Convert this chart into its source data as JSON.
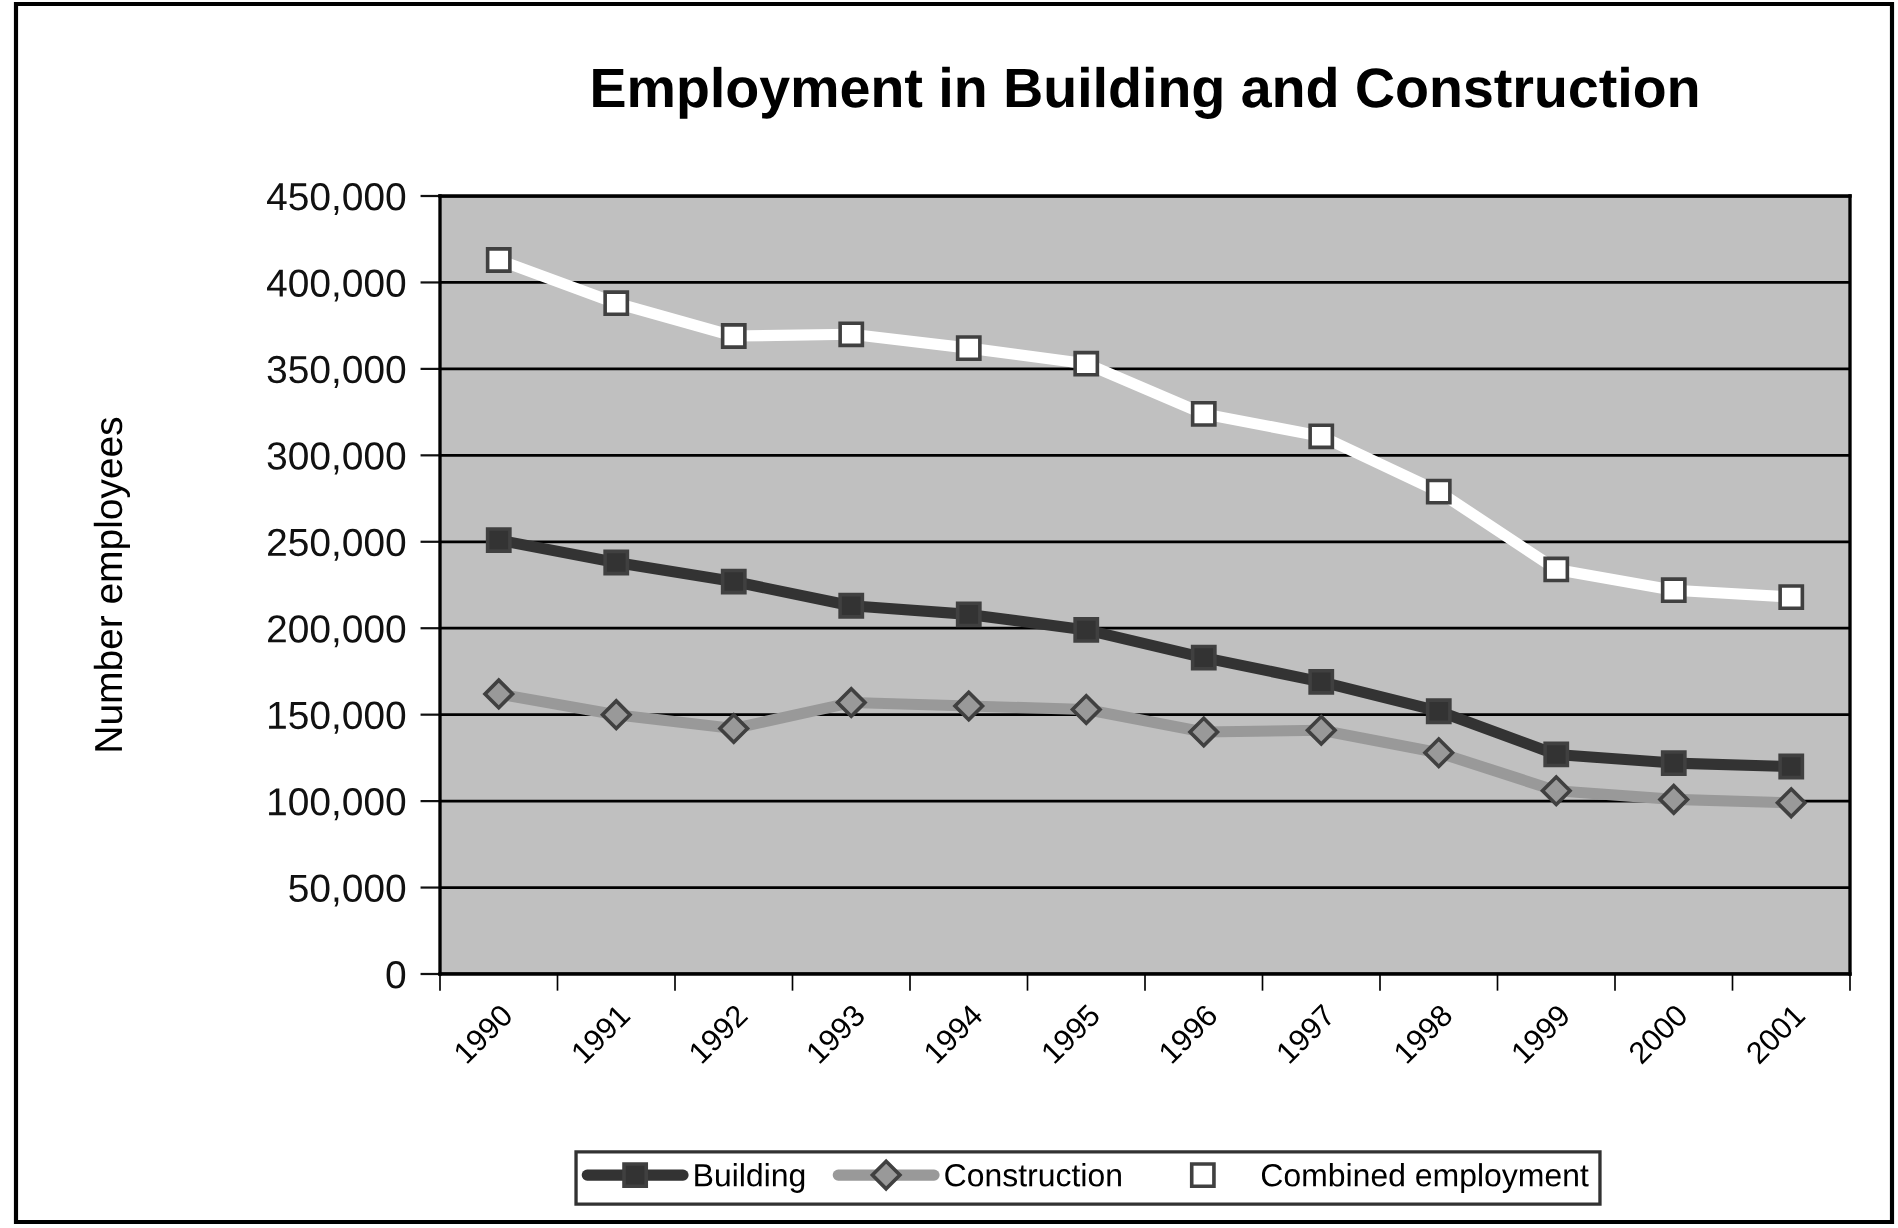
{
  "chart_data": {
    "type": "line",
    "title": "Employment in Building and Construction",
    "ylabel": "Number employees",
    "categories": [
      "1990",
      "1991",
      "1992",
      "1993",
      "1994",
      "1995",
      "1996",
      "1997",
      "1998",
      "1999",
      "2000",
      "2001"
    ],
    "series": [
      {
        "name": "Building",
        "color": "#333333",
        "marker": "square",
        "values": [
          251000,
          238000,
          227000,
          213000,
          208000,
          199000,
          183000,
          169000,
          152000,
          127000,
          122000,
          120000
        ]
      },
      {
        "name": "Construction",
        "color": "#999999",
        "marker": "diamond",
        "values": [
          162000,
          150000,
          142000,
          157000,
          155000,
          153000,
          140000,
          141000,
          128000,
          106000,
          101000,
          99000
        ]
      },
      {
        "name": "Combined employment",
        "color": "#ffffff",
        "marker": "square",
        "values": [
          413000,
          388000,
          369000,
          370000,
          362000,
          353000,
          324000,
          311000,
          279000,
          234000,
          222000,
          218000
        ]
      }
    ],
    "ylim": [
      0,
      450000
    ],
    "yticks": [
      0,
      {
        "value": 50000,
        "label": "50,000"
      },
      {
        "value": 100000,
        "label": "100,000"
      },
      {
        "value": 150000,
        "label": "150,000"
      },
      {
        "value": 200000,
        "label": "200,000"
      },
      {
        "value": 250000,
        "label": "250,000"
      },
      {
        "value": 300000,
        "label": "300,000"
      },
      {
        "value": 350000,
        "label": "350,000"
      },
      {
        "value": 400000,
        "label": "400,000"
      },
      {
        "value": 450000,
        "label": "450,000"
      }
    ],
    "grid": "y",
    "legend": "bottom",
    "line_style": "solid"
  }
}
